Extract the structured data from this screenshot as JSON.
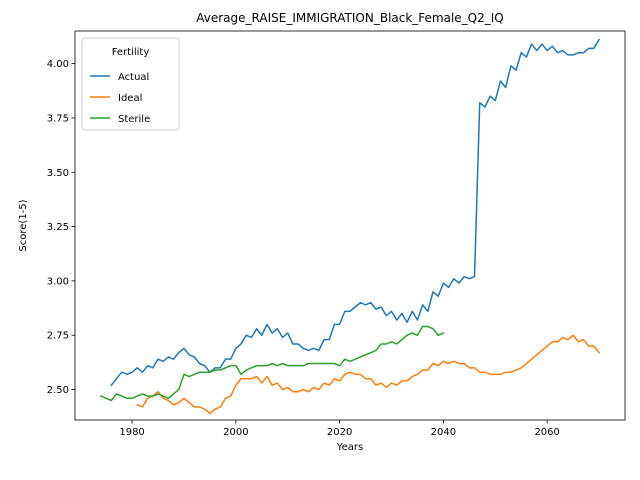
{
  "chart_data": {
    "type": "line",
    "title": "Average_RAISE_IMMIGRATION_Black_Female_Q2_IQ",
    "xlabel": "Years",
    "ylabel": "Score(1-5)",
    "xlim": [
      1969,
      2075
    ],
    "ylim": [
      2.36,
      4.15
    ],
    "xticks": [
      1980,
      2000,
      2020,
      2040,
      2060
    ],
    "yticks": [
      2.5,
      2.75,
      3.0,
      3.25,
      3.5,
      3.75,
      4.0
    ],
    "ytick_labels": [
      "2.50",
      "2.75",
      "3.00",
      "3.25",
      "3.50",
      "3.75",
      "4.00"
    ],
    "grid": false,
    "legend": {
      "title": "Fertility",
      "position": "top-left"
    },
    "series": [
      {
        "name": "Actual",
        "color": "#1f77b4",
        "x": [
          1976,
          1977,
          1978,
          1979,
          1980,
          1981,
          1982,
          1983,
          1984,
          1985,
          1986,
          1987,
          1988,
          1989,
          1990,
          1991,
          1992,
          1993,
          1994,
          1995,
          1996,
          1997,
          1998,
          1999,
          2000,
          2001,
          2002,
          2003,
          2004,
          2005,
          2006,
          2007,
          2008,
          2009,
          2010,
          2011,
          2012,
          2013,
          2014,
          2015,
          2016,
          2017,
          2018,
          2019,
          2020,
          2021,
          2022,
          2023,
          2024,
          2025,
          2026,
          2027,
          2028,
          2029,
          2030,
          2031,
          2032,
          2033,
          2034,
          2035,
          2036,
          2037,
          2038,
          2039,
          2040,
          2041,
          2042,
          2043,
          2044,
          2045,
          2046,
          2047,
          2048,
          2049,
          2050,
          2051,
          2052,
          2053,
          2054,
          2055,
          2056,
          2057,
          2058,
          2059,
          2060,
          2061,
          2062,
          2063,
          2064,
          2065,
          2066,
          2067,
          2068,
          2069,
          2070
        ],
        "values": [
          2.52,
          2.55,
          2.58,
          2.57,
          2.58,
          2.6,
          2.58,
          2.61,
          2.6,
          2.64,
          2.63,
          2.65,
          2.64,
          2.67,
          2.69,
          2.66,
          2.65,
          2.62,
          2.61,
          2.58,
          2.6,
          2.6,
          2.64,
          2.64,
          2.69,
          2.71,
          2.75,
          2.74,
          2.78,
          2.75,
          2.8,
          2.76,
          2.78,
          2.74,
          2.76,
          2.71,
          2.71,
          2.69,
          2.68,
          2.69,
          2.68,
          2.73,
          2.73,
          2.8,
          2.8,
          2.86,
          2.86,
          2.88,
          2.9,
          2.89,
          2.9,
          2.87,
          2.88,
          2.84,
          2.86,
          2.82,
          2.85,
          2.81,
          2.86,
          2.82,
          2.89,
          2.86,
          2.95,
          2.93,
          2.99,
          2.97,
          3.01,
          2.99,
          3.02,
          3.01,
          3.02,
          3.82,
          3.8,
          3.85,
          3.83,
          3.92,
          3.89,
          3.99,
          3.97,
          4.05,
          4.03,
          4.09,
          4.06,
          4.09,
          4.06,
          4.08,
          4.05,
          4.06,
          4.04,
          4.04,
          4.05,
          4.05,
          4.07,
          4.07,
          4.11
        ]
      },
      {
        "name": "Ideal",
        "color": "#ff7f0e",
        "x": [
          1981,
          1982,
          1983,
          1984,
          1985,
          1986,
          1987,
          1988,
          1989,
          1990,
          1991,
          1992,
          1993,
          1994,
          1995,
          1996,
          1997,
          1998,
          1999,
          2000,
          2001,
          2002,
          2003,
          2004,
          2005,
          2006,
          2007,
          2008,
          2009,
          2010,
          2011,
          2012,
          2013,
          2014,
          2015,
          2016,
          2017,
          2018,
          2019,
          2020,
          2021,
          2022,
          2023,
          2024,
          2025,
          2026,
          2027,
          2028,
          2029,
          2030,
          2031,
          2032,
          2033,
          2034,
          2035,
          2036,
          2037,
          2038,
          2039,
          2040,
          2041,
          2042,
          2043,
          2044,
          2045,
          2046,
          2047,
          2048,
          2049,
          2050,
          2051,
          2052,
          2053,
          2054,
          2055,
          2056,
          2057,
          2058,
          2059,
          2060,
          2061,
          2062,
          2063,
          2064,
          2065,
          2066,
          2067,
          2068,
          2069,
          2070
        ],
        "values": [
          2.43,
          2.42,
          2.46,
          2.47,
          2.49,
          2.46,
          2.45,
          2.43,
          2.44,
          2.46,
          2.44,
          2.42,
          2.42,
          2.41,
          2.39,
          2.41,
          2.42,
          2.46,
          2.47,
          2.52,
          2.55,
          2.55,
          2.55,
          2.56,
          2.53,
          2.56,
          2.52,
          2.53,
          2.5,
          2.51,
          2.49,
          2.49,
          2.5,
          2.49,
          2.51,
          2.5,
          2.53,
          2.52,
          2.55,
          2.54,
          2.57,
          2.58,
          2.57,
          2.57,
          2.55,
          2.55,
          2.52,
          2.53,
          2.51,
          2.53,
          2.52,
          2.54,
          2.54,
          2.56,
          2.57,
          2.59,
          2.59,
          2.62,
          2.61,
          2.63,
          2.62,
          2.63,
          2.62,
          2.62,
          2.6,
          2.6,
          2.58,
          2.58,
          2.57,
          2.57,
          2.57,
          2.58,
          2.58,
          2.59,
          2.6,
          2.62,
          2.64,
          2.66,
          2.68,
          2.7,
          2.72,
          2.72,
          2.74,
          2.73,
          2.75,
          2.72,
          2.73,
          2.7,
          2.7,
          2.67
        ]
      },
      {
        "name": "Sterile",
        "color": "#2ca02c",
        "x": [
          1974,
          1975,
          1976,
          1977,
          1978,
          1979,
          1980,
          1981,
          1982,
          1983,
          1984,
          1985,
          1986,
          1987,
          1988,
          1989,
          1990,
          1991,
          1992,
          1993,
          1994,
          1995,
          1996,
          1997,
          1998,
          1999,
          2000,
          2001,
          2002,
          2003,
          2004,
          2005,
          2006,
          2007,
          2008,
          2009,
          2010,
          2011,
          2012,
          2013,
          2014,
          2015,
          2016,
          2017,
          2018,
          2019,
          2020,
          2021,
          2022,
          2023,
          2024,
          2025,
          2026,
          2027,
          2028,
          2029,
          2030,
          2031,
          2032,
          2033,
          2034,
          2035,
          2036,
          2037,
          2038,
          2039,
          2040
        ],
        "values": [
          2.47,
          2.46,
          2.45,
          2.48,
          2.47,
          2.46,
          2.46,
          2.47,
          2.48,
          2.47,
          2.47,
          2.48,
          2.47,
          2.46,
          2.48,
          2.5,
          2.57,
          2.56,
          2.57,
          2.58,
          2.58,
          2.58,
          2.59,
          2.59,
          2.6,
          2.61,
          2.61,
          2.57,
          2.59,
          2.6,
          2.61,
          2.61,
          2.61,
          2.62,
          2.61,
          2.62,
          2.61,
          2.61,
          2.61,
          2.61,
          2.62,
          2.62,
          2.62,
          2.62,
          2.62,
          2.62,
          2.61,
          2.64,
          2.63,
          2.64,
          2.65,
          2.66,
          2.67,
          2.68,
          2.71,
          2.71,
          2.72,
          2.71,
          2.73,
          2.75,
          2.76,
          2.75,
          2.79,
          2.79,
          2.78,
          2.75,
          2.76
        ]
      }
    ]
  }
}
